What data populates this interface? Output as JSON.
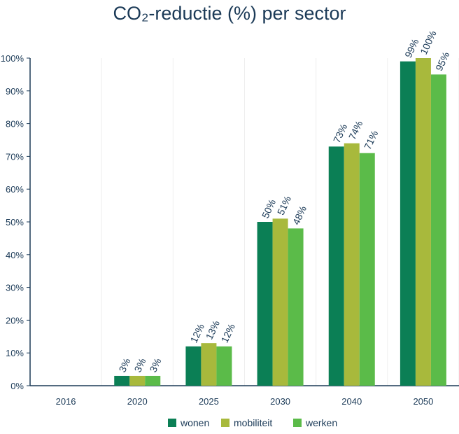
{
  "chart_data": {
    "type": "bar",
    "title": "CO₂-reductie (%) per sector",
    "xlabel": "",
    "ylabel": "",
    "ylim": [
      0,
      100
    ],
    "ytick_step": 10,
    "grid": "vertical",
    "legend_position": "bottom",
    "categories": [
      "2016",
      "2020",
      "2025",
      "2030",
      "2040",
      "2050"
    ],
    "series": [
      {
        "name": "wonen",
        "color": "#0b7f55",
        "values": [
          0,
          3,
          12,
          50,
          73,
          99
        ],
        "labels": [
          "",
          "3%",
          "12%",
          "50%",
          "73%",
          "99%"
        ]
      },
      {
        "name": "mobiliteit",
        "color": "#a8b93c",
        "values": [
          0,
          3,
          13,
          51,
          74,
          100
        ],
        "labels": [
          "",
          "3%",
          "13%",
          "51%",
          "74%",
          "100%"
        ]
      },
      {
        "name": "werken",
        "color": "#5bbb49",
        "values": [
          0,
          3,
          12,
          48,
          71,
          95
        ],
        "labels": [
          "",
          "3%",
          "12%",
          "48%",
          "71%",
          "95%"
        ]
      }
    ]
  }
}
